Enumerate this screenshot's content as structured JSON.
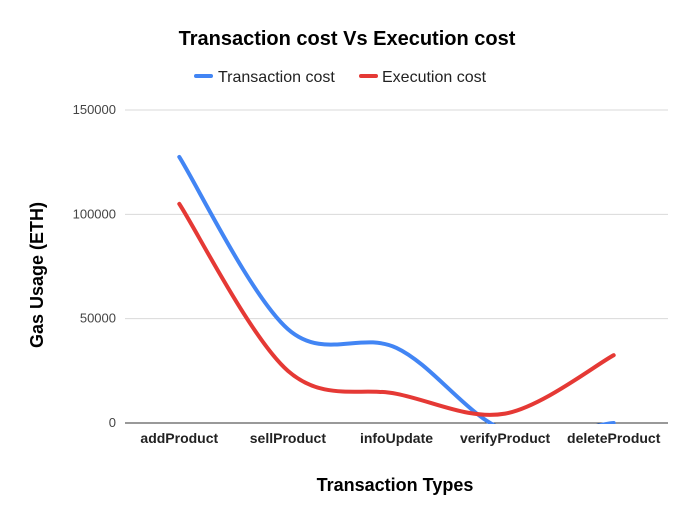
{
  "chart_data": {
    "type": "line",
    "title": "Transaction cost Vs Execution cost",
    "xlabel": "Transaction Types",
    "ylabel": "Gas Usage (ETH)",
    "categories": [
      "addProduct",
      "sellProduct",
      "infoUpdate",
      "verifyProduct",
      "deleteProduct"
    ],
    "yticks": [
      "0",
      "50000",
      "100000",
      "150000"
    ],
    "ylim": [
      0,
      150000
    ],
    "grid": true,
    "legend_position": "top",
    "smooth": true,
    "series": [
      {
        "name": "Transaction cost",
        "color": "#4285f4",
        "values": [
          127500,
          45000,
          36000,
          -3500,
          0
        ]
      },
      {
        "name": "Execution cost",
        "color": "#e53935",
        "values": [
          105000,
          25000,
          14000,
          4500,
          32500
        ]
      }
    ]
  }
}
